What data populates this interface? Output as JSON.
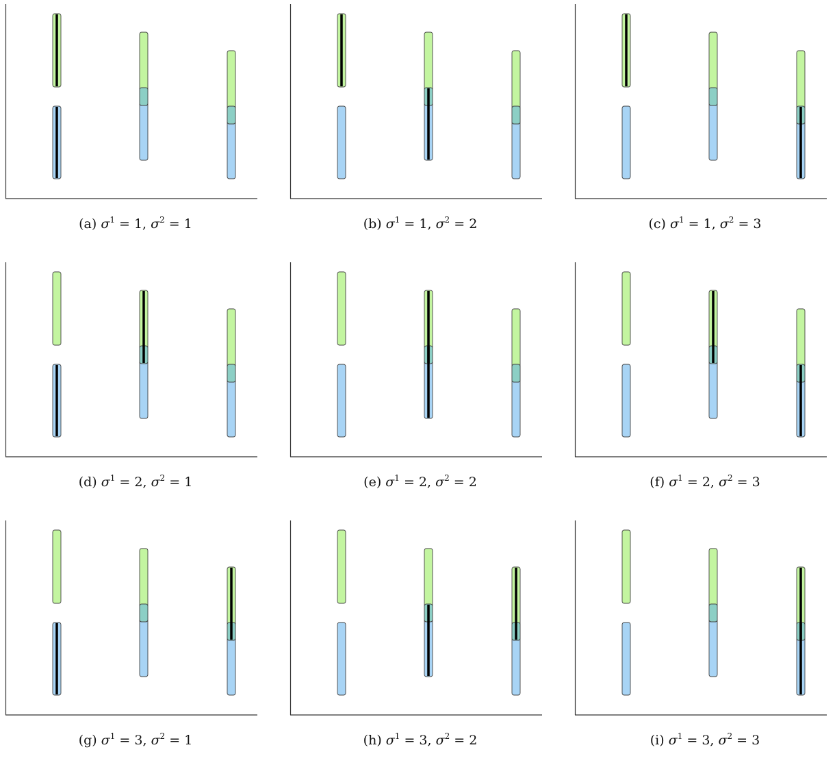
{
  "colors": {
    "green_fill": "#c3f5a0",
    "blue_fill": "#a8d4f5",
    "overlap_fill": "#8ccfc5",
    "outline": "#444444",
    "highlight": "#000000",
    "axis": "#333333"
  },
  "rows": [
    {
      "index": 0,
      "sigma1": "1"
    },
    {
      "index": 1,
      "sigma1": "2"
    },
    {
      "index": 2,
      "sigma1": "3"
    }
  ],
  "columns": [
    {
      "index": 0,
      "sigma2": "1"
    },
    {
      "index": 1,
      "sigma2": "2"
    },
    {
      "index": 2,
      "sigma2": "3"
    }
  ],
  "panels": [
    {
      "id": "a",
      "label": "(a)",
      "sigma1": "1",
      "sigma2": "1",
      "highlight_first": "top",
      "highlight_second": "bottom",
      "second_column": 1
    },
    {
      "id": "b",
      "label": "(b)",
      "sigma1": "1",
      "sigma2": "2",
      "highlight_first": "top",
      "highlight_second": "bottom",
      "second_column": 2
    },
    {
      "id": "c",
      "label": "(c)",
      "sigma1": "1",
      "sigma2": "3",
      "highlight_first": "top",
      "highlight_second": "bottom",
      "second_column": 3
    },
    {
      "id": "d",
      "label": "(d)",
      "sigma1": "2",
      "sigma2": "1",
      "highlight_first": "top",
      "highlight_second": "bottom",
      "second_column": 1
    },
    {
      "id": "e",
      "label": "(e)",
      "sigma1": "2",
      "sigma2": "2",
      "highlight_first": "top",
      "highlight_second": "bottom",
      "second_column": 2
    },
    {
      "id": "f",
      "label": "(f)",
      "sigma1": "2",
      "sigma2": "3",
      "highlight_first": "top",
      "highlight_second": "bottom",
      "second_column": 3
    },
    {
      "id": "g",
      "label": "(g)",
      "sigma1": "3",
      "sigma2": "1",
      "highlight_first": "top",
      "highlight_second": "bottom",
      "second_column": 1
    },
    {
      "id": "h",
      "label": "(h)",
      "sigma1": "3",
      "sigma2": "2",
      "highlight_first": "top",
      "highlight_second": "bottom",
      "second_column": 2
    },
    {
      "id": "i",
      "label": "(i)",
      "sigma1": "3",
      "sigma2": "3",
      "highlight_first": "top",
      "highlight_second": "bottom",
      "second_column": 3
    }
  ],
  "caption_parts": {
    "sigma": "σ",
    "sup1": "1",
    "sup2": "2",
    "equals": " = ",
    "separator": ", "
  }
}
